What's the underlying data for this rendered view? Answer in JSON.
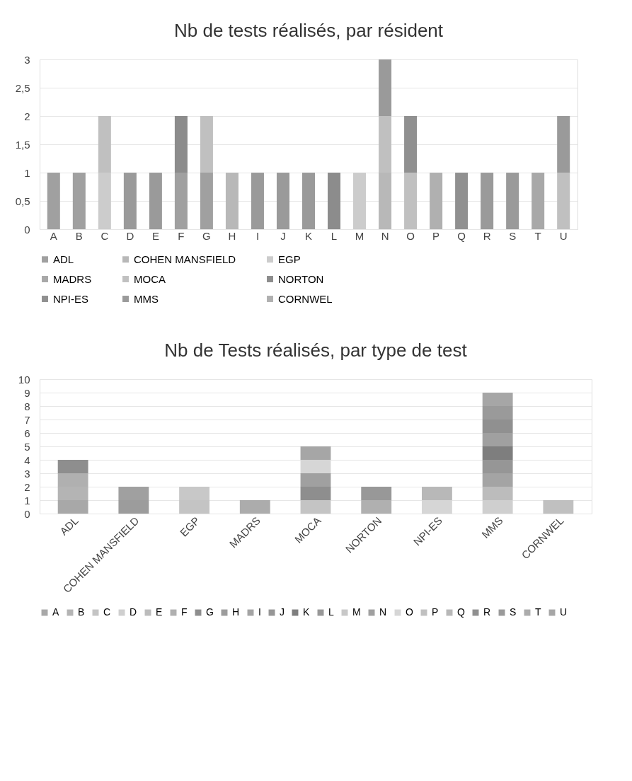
{
  "chart_data": [
    {
      "type": "bar",
      "title": "Nb de tests réalisés, par résident",
      "stacked": true,
      "grid": "y",
      "legend": "bottom",
      "categories": [
        "A",
        "B",
        "C",
        "D",
        "E",
        "F",
        "G",
        "H",
        "I",
        "J",
        "K",
        "L",
        "M",
        "N",
        "O",
        "P",
        "Q",
        "R",
        "S",
        "T",
        "U"
      ],
      "ylim": [
        0,
        3
      ],
      "yticks": [
        0,
        {
          "value": 0.5,
          "label": "0,5"
        },
        1,
        {
          "value": 1.5,
          "label": "1,5"
        },
        2,
        {
          "value": 2.5,
          "label": "2,5"
        },
        3
      ],
      "series": [
        {
          "name": "ADL",
          "color": "#a0a0a0",
          "values": [
            1,
            1,
            null,
            null,
            null,
            1,
            1,
            null,
            null,
            null,
            null,
            null,
            null,
            null,
            null,
            null,
            null,
            null,
            null,
            null,
            null
          ]
        },
        {
          "name": "COHEN MANSFIELD",
          "color": "#b8b8b8",
          "values": [
            null,
            null,
            null,
            null,
            null,
            null,
            null,
            1,
            null,
            null,
            null,
            null,
            null,
            1,
            null,
            null,
            null,
            null,
            null,
            null,
            null
          ]
        },
        {
          "name": "EGP",
          "color": "#cccccc",
          "values": [
            null,
            null,
            1,
            null,
            null,
            null,
            null,
            null,
            null,
            null,
            null,
            null,
            1,
            null,
            null,
            null,
            null,
            null,
            null,
            null,
            null
          ]
        },
        {
          "name": "MADRS",
          "color": "#a8a8a8",
          "values": [
            null,
            null,
            null,
            null,
            null,
            null,
            null,
            null,
            null,
            null,
            null,
            null,
            null,
            null,
            null,
            null,
            null,
            null,
            null,
            1,
            null
          ]
        },
        {
          "name": "MOCA",
          "color": "#c0c0c0",
          "values": [
            null,
            null,
            1,
            null,
            null,
            null,
            1,
            null,
            null,
            null,
            null,
            null,
            null,
            1,
            1,
            null,
            null,
            null,
            null,
            null,
            1
          ]
        },
        {
          "name": "NORTON",
          "color": "#8c8c8c",
          "values": [
            null,
            null,
            null,
            null,
            null,
            1,
            null,
            null,
            null,
            null,
            null,
            1,
            null,
            null,
            null,
            null,
            null,
            null,
            null,
            null,
            null
          ]
        },
        {
          "name": "NPI-ES",
          "color": "#909090",
          "values": [
            null,
            null,
            null,
            null,
            null,
            null,
            null,
            null,
            null,
            null,
            null,
            null,
            null,
            null,
            1,
            null,
            1,
            null,
            null,
            null,
            null
          ]
        },
        {
          "name": "MMS",
          "color": "#9a9a9a",
          "values": [
            null,
            null,
            null,
            1,
            1,
            null,
            null,
            null,
            1,
            1,
            1,
            null,
            null,
            1,
            null,
            null,
            null,
            1,
            1,
            null,
            1
          ]
        },
        {
          "name": "CORNWEL",
          "color": "#b0b0b0",
          "values": [
            null,
            null,
            null,
            null,
            null,
            null,
            null,
            null,
            null,
            null,
            null,
            null,
            null,
            null,
            null,
            1,
            null,
            null,
            null,
            null,
            null
          ]
        }
      ]
    },
    {
      "type": "bar",
      "title": "Nb de Tests réalisés, par type de test",
      "stacked": true,
      "grid": "y",
      "legend": "bottom",
      "categories": [
        "ADL",
        "COHEN MANSFIELD",
        "EGP",
        "MADRS",
        "MOCA",
        "NORTON",
        "NPI-ES",
        "MMS",
        "CORNWEL"
      ],
      "ylim": [
        0,
        10
      ],
      "yticks": [
        0,
        1,
        2,
        3,
        4,
        5,
        6,
        7,
        8,
        9,
        10
      ],
      "series": [
        {
          "name": "A",
          "color": "#a8a8a8",
          "values": [
            1,
            null,
            null,
            null,
            null,
            null,
            null,
            null,
            null
          ]
        },
        {
          "name": "B",
          "color": "#b4b4b4",
          "values": [
            1,
            null,
            null,
            null,
            null,
            null,
            null,
            null,
            null
          ]
        },
        {
          "name": "C",
          "color": "#c4c4c4",
          "values": [
            null,
            null,
            1,
            null,
            1,
            null,
            null,
            null,
            null
          ]
        },
        {
          "name": "D",
          "color": "#cfcfcf",
          "values": [
            null,
            null,
            null,
            null,
            null,
            null,
            null,
            1,
            null
          ]
        },
        {
          "name": "E",
          "color": "#bcbcbc",
          "values": [
            null,
            null,
            null,
            null,
            null,
            null,
            null,
            1,
            null
          ]
        },
        {
          "name": "F",
          "color": "#b0b0b0",
          "values": [
            1,
            null,
            null,
            null,
            null,
            1,
            null,
            null,
            null
          ]
        },
        {
          "name": "G",
          "color": "#8e8e8e",
          "values": [
            1,
            null,
            null,
            null,
            1,
            null,
            null,
            null,
            null
          ]
        },
        {
          "name": "H",
          "color": "#9c9c9c",
          "values": [
            null,
            1,
            null,
            null,
            null,
            null,
            null,
            null,
            null
          ]
        },
        {
          "name": "I",
          "color": "#a4a4a4",
          "values": [
            null,
            null,
            null,
            null,
            null,
            null,
            null,
            1,
            null
          ]
        },
        {
          "name": "J",
          "color": "#969696",
          "values": [
            null,
            null,
            null,
            null,
            null,
            null,
            null,
            1,
            null
          ]
        },
        {
          "name": "K",
          "color": "#7e7e7e",
          "values": [
            null,
            null,
            null,
            null,
            null,
            null,
            null,
            1,
            null
          ]
        },
        {
          "name": "L",
          "color": "#989898",
          "values": [
            null,
            null,
            null,
            null,
            null,
            1,
            null,
            null,
            null
          ]
        },
        {
          "name": "M",
          "color": "#c8c8c8",
          "values": [
            null,
            null,
            1,
            null,
            null,
            null,
            null,
            null,
            null
          ]
        },
        {
          "name": "N",
          "color": "#a0a0a0",
          "values": [
            null,
            1,
            null,
            null,
            1,
            null,
            null,
            1,
            null
          ]
        },
        {
          "name": "O",
          "color": "#d6d6d6",
          "values": [
            null,
            null,
            null,
            null,
            1,
            null,
            1,
            null,
            null
          ]
        },
        {
          "name": "P",
          "color": "#c0c0c0",
          "values": [
            null,
            null,
            null,
            null,
            null,
            null,
            null,
            null,
            1
          ]
        },
        {
          "name": "Q",
          "color": "#b8b8b8",
          "values": [
            null,
            null,
            null,
            null,
            null,
            null,
            1,
            null,
            null
          ]
        },
        {
          "name": "R",
          "color": "#909090",
          "values": [
            null,
            null,
            null,
            null,
            null,
            null,
            null,
            1,
            null
          ]
        },
        {
          "name": "S",
          "color": "#9a9a9a",
          "values": [
            null,
            null,
            null,
            null,
            null,
            null,
            null,
            1,
            null
          ]
        },
        {
          "name": "T",
          "color": "#acacac",
          "values": [
            null,
            null,
            null,
            1,
            null,
            null,
            null,
            null,
            null
          ]
        },
        {
          "name": "U",
          "color": "#a6a6a6",
          "values": [
            null,
            null,
            null,
            null,
            1,
            null,
            null,
            1,
            null
          ]
        }
      ]
    }
  ]
}
